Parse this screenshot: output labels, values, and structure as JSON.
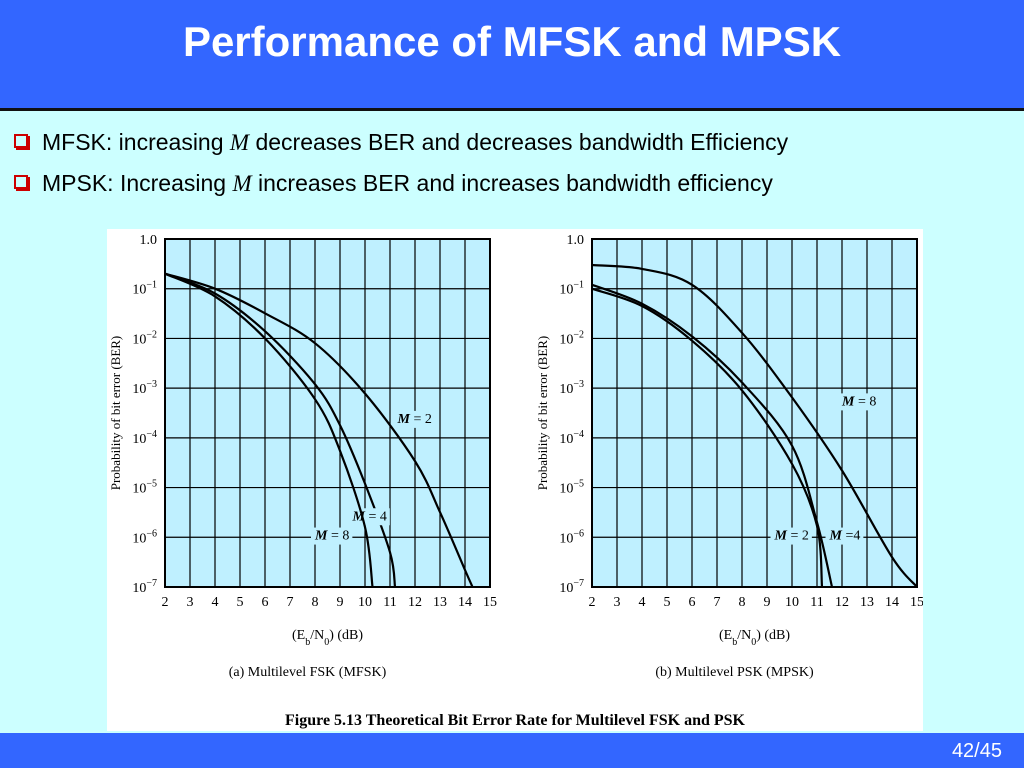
{
  "slide": {
    "title": "Performance of MFSK and MPSK",
    "bullets": [
      {
        "pre": "MFSK: increasing ",
        "var": "M",
        "post": " decreases BER and decreases bandwidth Efficiency"
      },
      {
        "pre": "MPSK: Increasing ",
        "var": "M",
        "post": " increases BER and increases bandwidth efficiency"
      }
    ],
    "page_number": "42/45",
    "colors": {
      "header": "#3366ff",
      "background": "#ccffff",
      "plot_bg": "#bff0ff",
      "bullet": "#cc0000"
    }
  },
  "figure_caption": "Figure 5.13  Theoretical Bit Error Rate for Multilevel FSK and PSK",
  "chart_data": [
    {
      "type": "line",
      "subtitle": "(a) Multilevel FSK (MFSK)",
      "xlabel_base": "(E",
      "xlabel_sub1": "b",
      "xlabel_mid": "/N",
      "xlabel_sub2": "0",
      "xlabel_post": ") (dB)",
      "ylabel": "Probability of bit error (BER)",
      "xlim": [
        2,
        15
      ],
      "ylim": [
        1e-07,
        1
      ],
      "yscale": "log",
      "grid": true,
      "x_ticks": [
        "2",
        "3",
        "4",
        "5",
        "6",
        "7",
        "8",
        "9",
        "10",
        "11",
        "12",
        "13",
        "14",
        "15"
      ],
      "y_ticks": [
        {
          "base": "1.0",
          "exp": ""
        },
        {
          "base": "10",
          "exp": "−1"
        },
        {
          "base": "10",
          "exp": "−2"
        },
        {
          "base": "10",
          "exp": "−3"
        },
        {
          "base": "10",
          "exp": "−4"
        },
        {
          "base": "10",
          "exp": "−5"
        },
        {
          "base": "10",
          "exp": "−6"
        },
        {
          "base": "10",
          "exp": "−7"
        }
      ],
      "series": [
        {
          "name": "M = 2",
          "label_at": [
            11.3,
            0.0002
          ],
          "points": [
            [
              2,
              0.2
            ],
            [
              4,
              0.1
            ],
            [
              6,
              0.032
            ],
            [
              8,
              0.008
            ],
            [
              10,
              0.00078
            ],
            [
              12,
              3.4e-05
            ],
            [
              13,
              3.2e-06
            ],
            [
              14,
              2.2e-07
            ],
            [
              14.3,
              1e-07
            ]
          ]
        },
        {
          "name": "M = 4",
          "label_at": [
            9.5,
            2.2e-06
          ],
          "points": [
            [
              2,
              0.2
            ],
            [
              4,
              0.08
            ],
            [
              6,
              0.014
            ],
            [
              8,
              0.0012
            ],
            [
              9,
              0.00018
            ],
            [
              10,
              1.2e-05
            ],
            [
              11,
              5e-07
            ],
            [
              11.2,
              1e-07
            ]
          ]
        },
        {
          "name": "M = 8",
          "label_at": [
            8.0,
            9e-07
          ],
          "points": [
            [
              2,
              0.2
            ],
            [
              4,
              0.07
            ],
            [
              6,
              0.01
            ],
            [
              8,
              0.0006
            ],
            [
              9,
              5.5e-05
            ],
            [
              10,
              1.6e-06
            ],
            [
              10.3,
              1e-07
            ]
          ]
        }
      ]
    },
    {
      "type": "line",
      "subtitle": "(b) Multilevel PSK (MPSK)",
      "xlabel_base": "(E",
      "xlabel_sub1": "b",
      "xlabel_mid": "/N",
      "xlabel_sub2": "0",
      "xlabel_post": ") (dB)",
      "ylabel": "Probability of bit error (BER)",
      "xlim": [
        2,
        15
      ],
      "ylim": [
        1e-07,
        1
      ],
      "yscale": "log",
      "grid": true,
      "x_ticks": [
        "2",
        "3",
        "4",
        "5",
        "6",
        "7",
        "8",
        "9",
        "10",
        "11",
        "12",
        "13",
        "14",
        "15"
      ],
      "y_ticks": [
        {
          "base": "1.0",
          "exp": ""
        },
        {
          "base": "10",
          "exp": "−1"
        },
        {
          "base": "10",
          "exp": "−2"
        },
        {
          "base": "10",
          "exp": "−3"
        },
        {
          "base": "10",
          "exp": "−4"
        },
        {
          "base": "10",
          "exp": "−5"
        },
        {
          "base": "10",
          "exp": "−6"
        },
        {
          "base": "10",
          "exp": "−7"
        }
      ],
      "series": [
        {
          "name": "M = 8",
          "label_at": [
            12.0,
            0.00045
          ],
          "points": [
            [
              2,
              0.3
            ],
            [
              4,
              0.25
            ],
            [
              6,
              0.12
            ],
            [
              8,
              0.013
            ],
            [
              10,
              0.00065
            ],
            [
              12,
              2.2e-05
            ],
            [
              14,
              4e-07
            ],
            [
              15,
              1e-07
            ]
          ]
        },
        {
          "name": "M = 2",
          "label_at": [
            9.3,
            9e-07
          ],
          "points": [
            [
              2,
              0.1
            ],
            [
              4,
              0.045
            ],
            [
              6,
              0.009
            ],
            [
              8,
              0.0009
            ],
            [
              10,
              3e-05
            ],
            [
              11,
              1.7e-06
            ],
            [
              11.2,
              1e-07
            ]
          ]
        },
        {
          "name": "M =4",
          "label_at": [
            11.5,
            9e-07
          ],
          "points": [
            [
              2,
              0.12
            ],
            [
              4,
              0.05
            ],
            [
              6,
              0.011
            ],
            [
              8,
              0.0013
            ],
            [
              10,
              7e-05
            ],
            [
              11,
              2e-06
            ],
            [
              11.6,
              1e-07
            ]
          ]
        }
      ]
    }
  ]
}
